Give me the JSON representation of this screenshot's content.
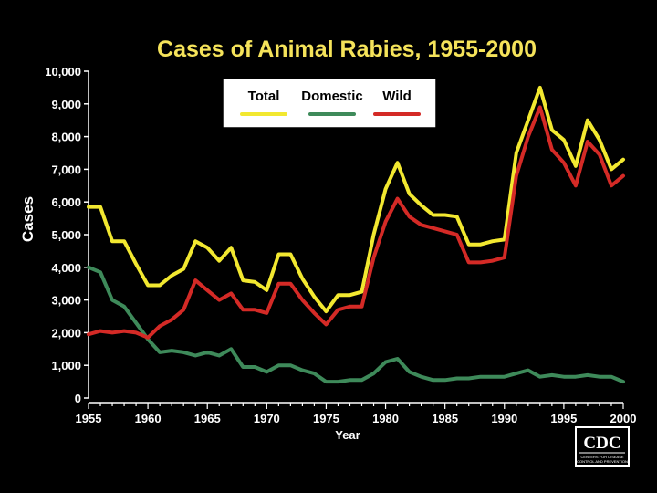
{
  "chart_data": {
    "type": "line",
    "title": "Cases of Animal Rabies, 1955-2000",
    "xlabel": "Year",
    "ylabel": "Cases",
    "xlim": [
      1955,
      2000
    ],
    "ylim": [
      0,
      10000
    ],
    "x_ticks": [
      "1955",
      "1960",
      "1965",
      "1970",
      "1975",
      "1980",
      "1985",
      "1990",
      "1995",
      "2000"
    ],
    "y_ticks": [
      "0",
      "1,000",
      "2,000",
      "3,000",
      "4,000",
      "5,000",
      "6,000",
      "7,000",
      "8,000",
      "9,000",
      "10,000"
    ],
    "legend_position": "top",
    "x": [
      1955,
      1956,
      1957,
      1958,
      1959,
      1960,
      1961,
      1962,
      1963,
      1964,
      1965,
      1966,
      1967,
      1968,
      1969,
      1970,
      1971,
      1972,
      1973,
      1974,
      1975,
      1976,
      1977,
      1978,
      1979,
      1980,
      1981,
      1982,
      1983,
      1984,
      1985,
      1986,
      1987,
      1988,
      1989,
      1990,
      1991,
      1992,
      1993,
      1994,
      1995,
      1996,
      1997,
      1998,
      1999,
      2000
    ],
    "series": [
      {
        "name": "Total",
        "color": "#f2e830",
        "values": [
          5850,
          5850,
          4800,
          4800,
          4100,
          3450,
          3450,
          3750,
          3950,
          4800,
          4600,
          4200,
          4600,
          3600,
          3550,
          3300,
          4400,
          4400,
          3650,
          3100,
          2650,
          3150,
          3150,
          3250,
          5000,
          6400,
          7200,
          6250,
          5900,
          5600,
          5600,
          5550,
          4700,
          4700,
          4800,
          4850,
          7500,
          8500,
          9500,
          8200,
          7900,
          7100,
          8500,
          7900,
          7000,
          7300
        ]
      },
      {
        "name": "Domestic",
        "color": "#3e8a5a",
        "values": [
          4000,
          3850,
          3000,
          2800,
          2300,
          1800,
          1400,
          1450,
          1400,
          1300,
          1400,
          1300,
          1500,
          950,
          950,
          800,
          1000,
          1000,
          850,
          750,
          500,
          500,
          550,
          550,
          750,
          1100,
          1200,
          800,
          650,
          550,
          550,
          600,
          600,
          650,
          650,
          650,
          750,
          850,
          650,
          700,
          650,
          650,
          700,
          650,
          650,
          500
        ]
      },
      {
        "name": "Wild",
        "color": "#d42a26",
        "values": [
          1950,
          2050,
          2000,
          2050,
          2000,
          1850,
          2200,
          2400,
          2700,
          3600,
          3300,
          3000,
          3200,
          2700,
          2700,
          2600,
          3500,
          3500,
          3000,
          2600,
          2250,
          2700,
          2800,
          2800,
          4300,
          5400,
          6100,
          5550,
          5300,
          5200,
          5100,
          5000,
          4150,
          4150,
          4200,
          4300,
          6800,
          8000,
          8900,
          7600,
          7200,
          6500,
          7850,
          7450,
          6500,
          6800
        ]
      }
    ]
  },
  "logo": {
    "text": "CDC",
    "subtitle_lines": [
      "CENTERS FOR DISEASE",
      "CONTROL AND PREVENTION"
    ]
  }
}
